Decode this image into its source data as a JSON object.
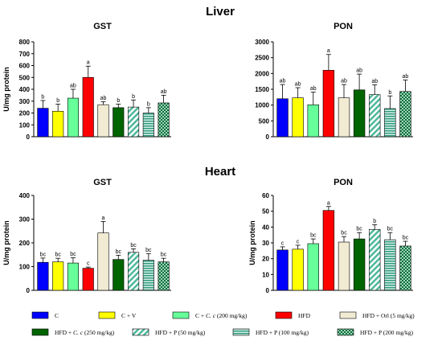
{
  "sections": [
    "Liver",
    "Heart"
  ],
  "legend": [
    {
      "pre": "C",
      "it": "",
      "post": "",
      "color": "#0000ff",
      "pattern": "solid"
    },
    {
      "pre": "C + V",
      "it": "",
      "post": "",
      "color": "#ffff00",
      "pattern": "solid"
    },
    {
      "pre": "C + ",
      "it": "C. c",
      "post": " (200 mg/kg)",
      "color": "#66ff99",
      "pattern": "solid"
    },
    {
      "pre": "HFD",
      "it": "",
      "post": "",
      "color": "#ff0000",
      "pattern": "solid"
    },
    {
      "pre": "HFD + Orl (5 mg/kg)",
      "it": "",
      "post": "",
      "color": "#f0ebd2",
      "pattern": "solid"
    },
    {
      "pre": "HFD + ",
      "it": "C. c",
      "post": " (250 mg/kg)",
      "color": "#006400",
      "pattern": "solid"
    },
    {
      "pre": "HFD + P (50 mg/kg)",
      "it": "",
      "post": "",
      "color": "#4db89a",
      "pattern": "diag"
    },
    {
      "pre": "HFD + P (100 mg/kg)",
      "it": "",
      "post": "",
      "color": "#2e9b7e",
      "pattern": "lines"
    },
    {
      "pre": "HFD + P (200 mg/kg)",
      "it": "",
      "post": "",
      "color": "#0f6b40",
      "pattern": "check"
    }
  ],
  "chart_data": [
    {
      "type": "bar",
      "title": "GST",
      "section": "Liver",
      "ylabel": "U/mg protein",
      "ylim": [
        0,
        800
      ],
      "yticks": [
        0,
        100,
        200,
        300,
        400,
        500,
        600,
        700,
        800
      ],
      "values": [
        240,
        215,
        325,
        500,
        270,
        245,
        250,
        200,
        285
      ],
      "errors": [
        65,
        60,
        75,
        95,
        25,
        30,
        60,
        45,
        65
      ],
      "letters": [
        "b",
        "b",
        "ab",
        "a",
        "ab",
        "b",
        "b",
        "b",
        "ab"
      ]
    },
    {
      "type": "bar",
      "title": "PON",
      "section": "Liver",
      "ylabel": "",
      "ylim": [
        0,
        3000
      ],
      "yticks": [
        0,
        500,
        1000,
        1500,
        2000,
        2500,
        3000
      ],
      "values": [
        1200,
        1230,
        1010,
        2100,
        1230,
        1480,
        1330,
        890,
        1430
      ],
      "errors": [
        450,
        320,
        400,
        500,
        420,
        500,
        310,
        400,
        360
      ],
      "letters": [
        "ab",
        "ab",
        "ab",
        "a",
        "ab",
        "ab",
        "ab",
        "b",
        "ab"
      ]
    },
    {
      "type": "bar",
      "title": "GST",
      "section": "Heart",
      "ylabel": "U/mg protein",
      "ylim": [
        0,
        400
      ],
      "yticks": [
        0,
        100,
        200,
        300,
        400
      ],
      "values": [
        118,
        120,
        115,
        93,
        242,
        130,
        160,
        127,
        120
      ],
      "errors": [
        18,
        15,
        22,
        5,
        48,
        18,
        15,
        28,
        15
      ],
      "letters": [
        "bc",
        "bc",
        "bc",
        "c",
        "a",
        "bc",
        "bc",
        "bc",
        "bc"
      ]
    },
    {
      "type": "bar",
      "title": "PON",
      "section": "Heart",
      "ylabel": "U/mg protein",
      "ylim": [
        0,
        60
      ],
      "yticks": [
        0,
        10,
        20,
        30,
        40,
        50,
        60
      ],
      "values": [
        25.5,
        26,
        29.5,
        50.5,
        30.5,
        32.5,
        38.5,
        32,
        28
      ],
      "errors": [
        2,
        2.5,
        3,
        2.5,
        3.5,
        4,
        3,
        4.5,
        3
      ],
      "letters": [
        "c",
        "c",
        "bc",
        "a",
        "bc",
        "bc",
        "b",
        "bc",
        "bc"
      ]
    }
  ]
}
